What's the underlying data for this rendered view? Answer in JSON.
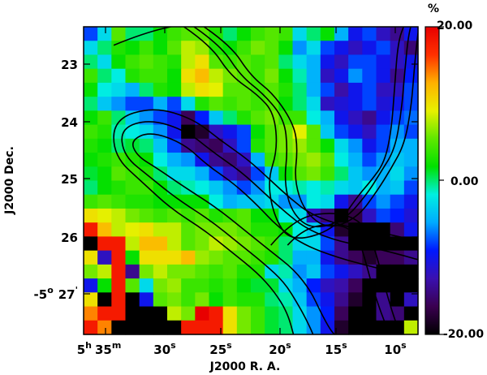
{
  "chart_data": {
    "type": "heatmap",
    "xlabel": "J2000 R. A.",
    "ylabel": "J2000 Dec.",
    "colorbar": {
      "unit_label": "%",
      "max_label": "20.00",
      "mid_label": "0.00",
      "min_label": "-20.00",
      "range": [
        -20,
        20
      ],
      "colormap": [
        "#000000",
        "#3a0050",
        "#3a10b0",
        "#0018ff",
        "#00aaff",
        "#00f0e0",
        "#00e000",
        "#60e800",
        "#e8f000",
        "#ffb000",
        "#ff3000",
        "#e80000"
      ]
    },
    "x_ticks": [
      {
        "value": "35",
        "prefix": "5",
        "prefix_unit": "h",
        "unit": "m"
      },
      {
        "value": "30",
        "unit": "s"
      },
      {
        "value": "25",
        "unit": "s"
      },
      {
        "value": "20",
        "unit": "s"
      },
      {
        "value": "15",
        "unit": "s"
      },
      {
        "value": "10",
        "unit": "s"
      }
    ],
    "y_ticks": [
      {
        "value": "23"
      },
      {
        "value": "24"
      },
      {
        "value": "25"
      },
      {
        "value": "26"
      },
      {
        "value": "27",
        "prefix": "-5",
        "prefix_unit": "o",
        "unit": "'"
      }
    ],
    "grid": {
      "cols": 24,
      "rows": 22,
      "values": [
        [
          -8,
          -3,
          5,
          0,
          0,
          2,
          4,
          5,
          5,
          3,
          0,
          2,
          4,
          5,
          4,
          -3,
          0,
          2,
          -5,
          -10,
          -8,
          -12,
          -14,
          -10
        ],
        [
          -3,
          0,
          3,
          2,
          4,
          2,
          5,
          8,
          7,
          3,
          2,
          4,
          6,
          5,
          2,
          -6,
          -3,
          -8,
          -10,
          -12,
          -10,
          -8,
          -12,
          -15
        ],
        [
          0,
          -3,
          2,
          4,
          5,
          4,
          3,
          8,
          10,
          5,
          4,
          5,
          4,
          5,
          0,
          -3,
          -5,
          -10,
          -12,
          -8,
          -8,
          -10,
          -12,
          -10
        ],
        [
          4,
          0,
          -2,
          3,
          4,
          4,
          2,
          10,
          12,
          8,
          6,
          5,
          4,
          6,
          2,
          -1,
          -5,
          -12,
          -10,
          -6,
          -8,
          -10,
          -14,
          -9
        ],
        [
          2,
          -2,
          -3,
          -5,
          0,
          3,
          2,
          8,
          10,
          9,
          5,
          5,
          4,
          5,
          3,
          0,
          -5,
          -8,
          -13,
          -10,
          -8,
          -12,
          -12,
          -8
        ],
        [
          0,
          -4,
          -6,
          -8,
          -8,
          -5,
          -8,
          -3,
          3,
          5,
          4,
          5,
          4,
          5,
          2,
          0,
          -3,
          -12,
          -11,
          -10,
          -8,
          -11,
          -10,
          -8
        ],
        [
          2,
          4,
          0,
          -4,
          -6,
          -8,
          -10,
          -16,
          -9,
          -4,
          0,
          3,
          5,
          6,
          4,
          4,
          -2,
          -5,
          -10,
          -12,
          -14,
          -10,
          -8,
          -7
        ],
        [
          4,
          3,
          -1,
          -2,
          -3,
          -6,
          -10,
          -20,
          -18,
          -12,
          -10,
          -8,
          2,
          5,
          6,
          9,
          5,
          -4,
          -8,
          -10,
          -12,
          -8,
          -6,
          -8
        ],
        [
          3,
          2,
          0,
          1,
          0,
          -4,
          -8,
          -14,
          -15,
          -16,
          -12,
          -8,
          3,
          5,
          6,
          7,
          5,
          2,
          -3,
          -6,
          -10,
          -8,
          -5,
          -5
        ],
        [
          2,
          3,
          4,
          3,
          2,
          -2,
          -5,
          -6,
          -10,
          -14,
          -15,
          -12,
          -5,
          4,
          5,
          6,
          7,
          5,
          -2,
          -5,
          -8,
          -6,
          -4,
          -5
        ],
        [
          1,
          2,
          5,
          4,
          3,
          0,
          -3,
          -3,
          -5,
          -8,
          -12,
          -14,
          -8,
          -4,
          2,
          5,
          6,
          4,
          0,
          -4,
          -6,
          -5,
          -3,
          -6
        ],
        [
          0,
          2,
          3,
          4,
          4,
          2,
          0,
          -1,
          -2,
          -4,
          -6,
          -8,
          -6,
          -2,
          -2,
          -1,
          -2,
          -1,
          -3,
          -4,
          -2,
          -5,
          -4,
          -8
        ],
        [
          4,
          5,
          4,
          3,
          3,
          2,
          2,
          2,
          2,
          -2,
          -5,
          -4,
          -4,
          -3,
          -6,
          -6,
          -2,
          -3,
          -10,
          -14,
          -8,
          -6,
          -8,
          -10
        ],
        [
          10,
          9,
          8,
          6,
          5,
          4,
          5,
          4,
          5,
          3,
          4,
          5,
          2,
          2,
          -2,
          -3,
          -12,
          -15,
          -20,
          -17,
          -12,
          -8,
          -9,
          -11
        ],
        [
          18,
          12,
          8,
          9,
          10,
          8,
          8,
          5,
          6,
          6,
          6,
          5,
          3,
          3,
          2,
          -2,
          -4,
          -10,
          -18,
          -20,
          -20,
          -20,
          -15,
          -10
        ],
        [
          -20,
          18,
          18,
          8,
          12,
          12,
          8,
          5,
          6,
          8,
          7,
          6,
          5,
          4,
          0,
          -3,
          -3,
          -8,
          -14,
          -20,
          -20,
          -20,
          -20,
          -20
        ],
        [
          10,
          -12,
          18,
          2,
          10,
          10,
          10,
          12,
          7,
          6,
          5,
          5,
          4,
          3,
          0,
          -5,
          -5,
          -10,
          -14,
          -16,
          -18,
          -16,
          -16,
          -14
        ],
        [
          6,
          8,
          18,
          -14,
          6,
          8,
          6,
          6,
          5,
          4,
          5,
          3,
          3,
          -3,
          -1,
          -6,
          -4,
          -8,
          -10,
          -12,
          -14,
          -20,
          -20,
          -20
        ],
        [
          -10,
          2,
          18,
          5,
          -3,
          6,
          7,
          4,
          4,
          3,
          4,
          2,
          1,
          1,
          -3,
          -5,
          -9,
          -12,
          -13,
          -16,
          -20,
          -20,
          -20,
          -20
        ],
        [
          10,
          -20,
          18,
          -20,
          -10,
          5,
          6,
          4,
          6,
          2,
          4,
          3,
          3,
          0,
          -1,
          -4,
          -8,
          -10,
          -14,
          -18,
          -20,
          -14,
          -20,
          -12
        ],
        [
          14,
          18,
          18,
          -20,
          -20,
          -20,
          8,
          6,
          20,
          18,
          10,
          6,
          4,
          1,
          0,
          -3,
          -6,
          -9,
          -16,
          -20,
          -20,
          -14,
          -15,
          -20
        ],
        [
          18,
          14,
          -20,
          -20,
          -20,
          -20,
          -20,
          18,
          18,
          18,
          10,
          6,
          4,
          1,
          0,
          -3,
          -6,
          -10,
          -18,
          -20,
          -20,
          -20,
          -20,
          8
        ]
      ]
    },
    "contours": [
      [
        [
          0.09,
          0.06
        ],
        [
          0.18,
          0.02
        ],
        [
          0.3,
          -0.01
        ]
      ],
      [
        [
          0.3,
          0.0
        ],
        [
          0.38,
          0.06
        ],
        [
          0.44,
          0.16
        ],
        [
          0.52,
          0.22
        ],
        [
          0.57,
          0.28
        ],
        [
          0.58,
          0.4
        ],
        [
          0.55,
          0.5
        ],
        [
          0.57,
          0.62
        ],
        [
          0.62,
          0.7
        ],
        [
          0.75,
          0.66
        ],
        [
          0.82,
          0.55
        ],
        [
          0.86,
          0.5
        ],
        [
          0.9,
          0.44
        ],
        [
          0.92,
          0.34
        ],
        [
          0.93,
          0.2
        ],
        [
          0.94,
          0.05
        ],
        [
          0.96,
          -0.01
        ]
      ],
      [
        [
          0.33,
          0.0
        ],
        [
          0.41,
          0.06
        ],
        [
          0.47,
          0.16
        ],
        [
          0.54,
          0.22
        ],
        [
          0.6,
          0.3
        ],
        [
          0.61,
          0.4
        ],
        [
          0.6,
          0.5
        ],
        [
          0.62,
          0.6
        ],
        [
          0.68,
          0.66
        ],
        [
          0.78,
          0.63
        ],
        [
          0.85,
          0.54
        ],
        [
          0.89,
          0.47
        ],
        [
          0.93,
          0.4
        ],
        [
          0.95,
          0.28
        ],
        [
          0.96,
          0.15
        ],
        [
          0.97,
          0.04
        ],
        [
          0.98,
          -0.01
        ]
      ],
      [
        [
          0.36,
          0.0
        ],
        [
          0.44,
          0.06
        ],
        [
          0.5,
          0.16
        ],
        [
          0.57,
          0.22
        ],
        [
          0.63,
          0.32
        ],
        [
          0.64,
          0.4
        ],
        [
          0.63,
          0.5
        ],
        [
          0.66,
          0.6
        ],
        [
          0.73,
          0.66
        ],
        [
          0.82,
          0.62
        ],
        [
          0.88,
          0.53
        ],
        [
          0.92,
          0.46
        ],
        [
          0.96,
          0.38
        ],
        [
          0.98,
          0.26
        ],
        [
          0.99,
          0.12
        ],
        [
          1.0,
          0.02
        ]
      ],
      [
        [
          1.01,
          0.82
        ],
        [
          0.86,
          0.78
        ],
        [
          0.76,
          0.75
        ],
        [
          0.66,
          0.71
        ],
        [
          0.58,
          0.65
        ],
        [
          0.52,
          0.58
        ],
        [
          0.45,
          0.51
        ],
        [
          0.37,
          0.45
        ],
        [
          0.3,
          0.38
        ],
        [
          0.2,
          0.34
        ],
        [
          0.14,
          0.37
        ],
        [
          0.16,
          0.42
        ],
        [
          0.22,
          0.46
        ],
        [
          0.3,
          0.52
        ],
        [
          0.4,
          0.59
        ],
        [
          0.48,
          0.66
        ],
        [
          0.56,
          0.73
        ],
        [
          0.63,
          0.79
        ],
        [
          0.68,
          0.86
        ],
        [
          0.71,
          0.93
        ],
        [
          0.74,
          0.99
        ],
        [
          0.76,
          1.01
        ]
      ],
      [
        [
          1.01,
          0.76
        ],
        [
          0.88,
          0.72
        ],
        [
          0.77,
          0.7
        ],
        [
          0.67,
          0.66
        ],
        [
          0.6,
          0.6
        ],
        [
          0.54,
          0.54
        ],
        [
          0.47,
          0.47
        ],
        [
          0.39,
          0.41
        ],
        [
          0.31,
          0.34
        ],
        [
          0.2,
          0.3
        ],
        [
          0.11,
          0.33
        ],
        [
          0.12,
          0.42
        ],
        [
          0.2,
          0.49
        ],
        [
          0.28,
          0.56
        ],
        [
          0.38,
          0.63
        ],
        [
          0.46,
          0.7
        ],
        [
          0.54,
          0.77
        ],
        [
          0.6,
          0.83
        ],
        [
          0.64,
          0.9
        ],
        [
          0.67,
          0.96
        ],
        [
          0.69,
          1.01
        ]
      ],
      [
        [
          1.01,
          0.7
        ],
        [
          0.9,
          0.67
        ],
        [
          0.78,
          0.65
        ],
        [
          0.68,
          0.61
        ],
        [
          0.62,
          0.56
        ],
        [
          0.56,
          0.5
        ],
        [
          0.49,
          0.43
        ],
        [
          0.41,
          0.37
        ],
        [
          0.33,
          0.3
        ],
        [
          0.21,
          0.26
        ],
        [
          0.09,
          0.3
        ],
        [
          0.09,
          0.42
        ],
        [
          0.18,
          0.51
        ],
        [
          0.26,
          0.59
        ],
        [
          0.36,
          0.66
        ],
        [
          0.44,
          0.73
        ],
        [
          0.52,
          0.8
        ],
        [
          0.57,
          0.86
        ],
        [
          0.61,
          0.93
        ],
        [
          0.63,
          1.01
        ]
      ],
      [
        [
          0.61,
          0.71
        ],
        [
          0.66,
          0.65
        ],
        [
          0.77,
          0.64
        ],
        [
          0.82,
          0.68
        ],
        [
          0.84,
          0.75
        ],
        [
          0.86,
          0.83
        ],
        [
          0.88,
          0.9
        ],
        [
          0.9,
          0.96
        ],
        [
          0.92,
          1.01
        ]
      ],
      [
        [
          0.56,
          0.71
        ],
        [
          0.63,
          0.62
        ],
        [
          0.76,
          0.6
        ],
        [
          0.84,
          0.64
        ],
        [
          0.87,
          0.72
        ],
        [
          0.89,
          0.8
        ],
        [
          0.91,
          0.88
        ],
        [
          0.93,
          0.95
        ],
        [
          0.95,
          1.01
        ]
      ]
    ]
  }
}
